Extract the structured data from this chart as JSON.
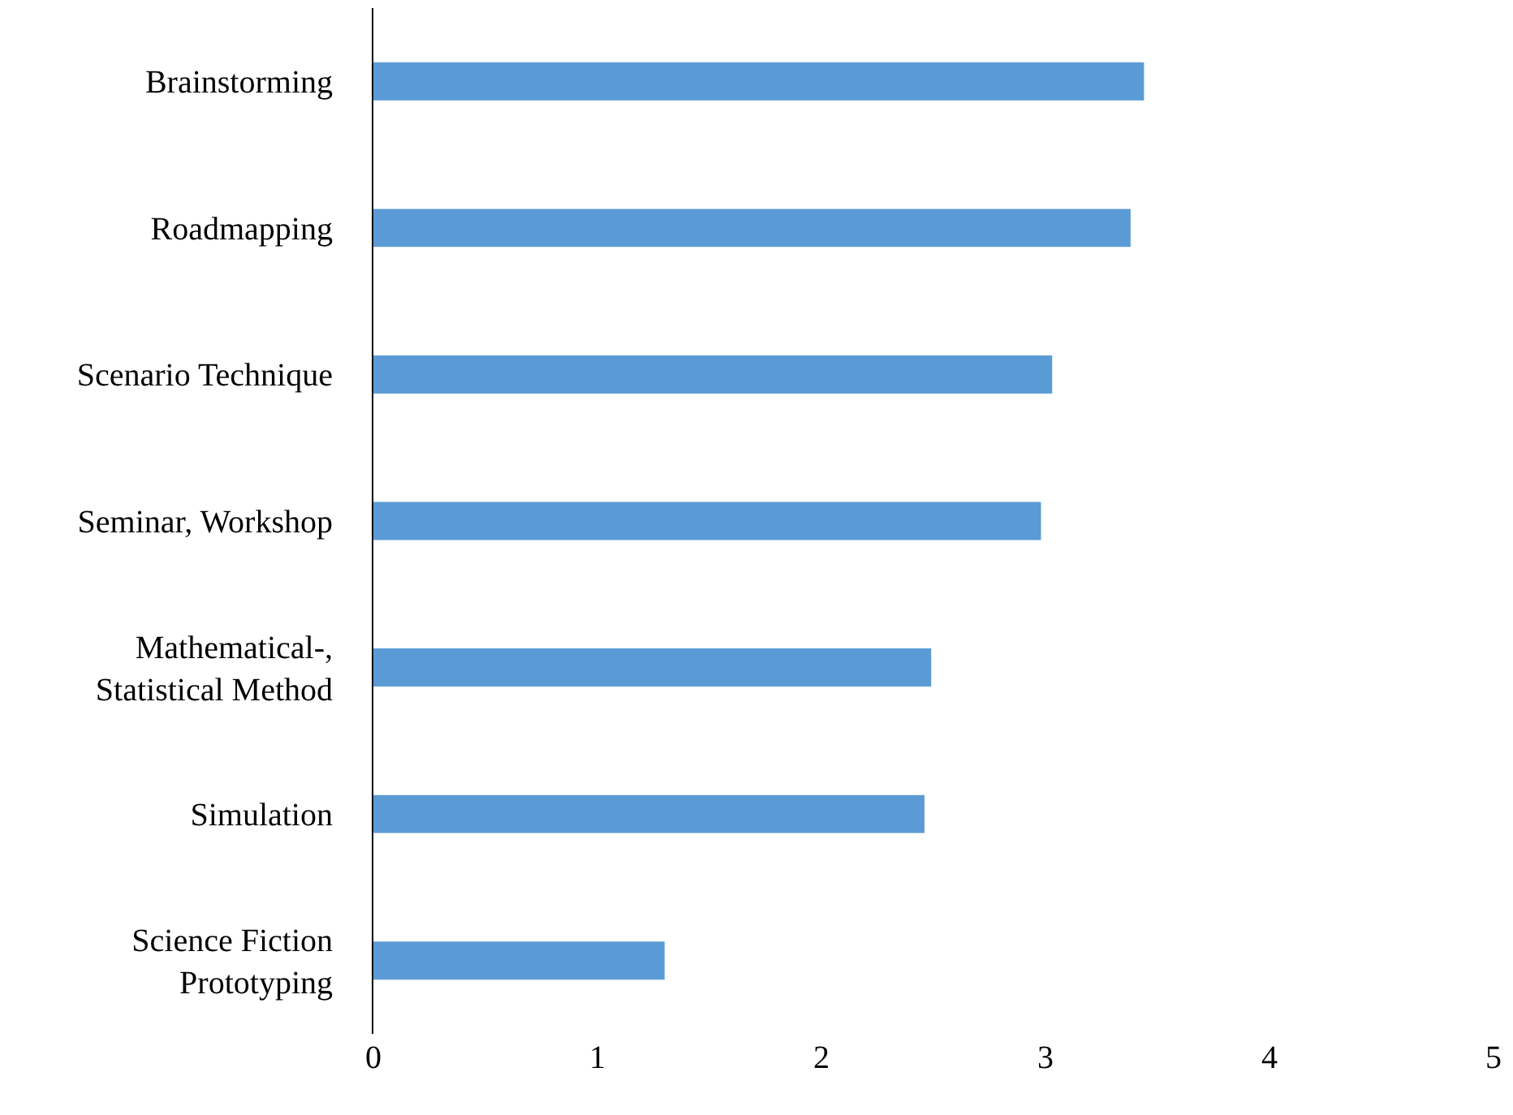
{
  "chart_data": {
    "type": "bar",
    "orientation": "horizontal",
    "categories": [
      "Brainstorming",
      "Roadmapping",
      "Scenario Technique",
      "Seminar, Workshop",
      "Mathematical-,\nStatistical Method",
      "Simulation",
      "Science Fiction\nPrototyping"
    ],
    "values": [
      3.44,
      3.38,
      3.03,
      2.98,
      2.49,
      2.46,
      1.3
    ],
    "color": "#5b9bd5",
    "xlim": [
      0,
      5
    ],
    "xticks": [
      0,
      1,
      2,
      3,
      4,
      5
    ],
    "grid": false,
    "legend": false
  }
}
